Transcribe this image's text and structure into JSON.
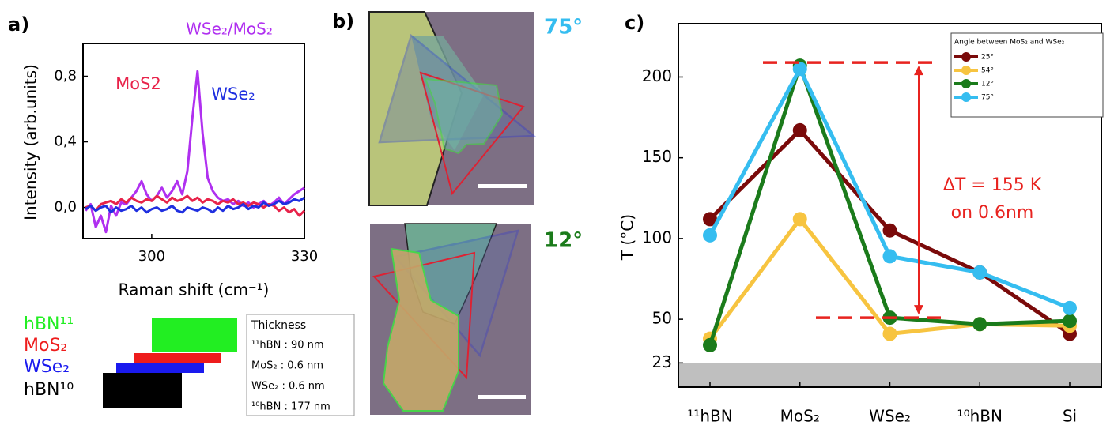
{
  "chart_data": [
    {
      "type": "line",
      "panel": "a)",
      "x": [
        287,
        288,
        289,
        290,
        291,
        292,
        293,
        294,
        295,
        296,
        297,
        298,
        299,
        300,
        301,
        302,
        303,
        304,
        305,
        306,
        307,
        308,
        309,
        310,
        311,
        312,
        313,
        314,
        315,
        316,
        317,
        318,
        319,
        320,
        321,
        322,
        323,
        324,
        325,
        326,
        327,
        328,
        329,
        330
      ],
      "series": [
        {
          "name": "WSe₂/MoS₂",
          "color": "#b030f0",
          "values": [
            -0.02,
            0.02,
            -0.12,
            -0.05,
            -0.15,
            0.01,
            -0.05,
            0.03,
            0.02,
            0.06,
            0.1,
            0.16,
            0.08,
            0.04,
            0.07,
            0.12,
            0.06,
            0.1,
            0.16,
            0.08,
            0.22,
            0.55,
            0.83,
            0.45,
            0.18,
            0.1,
            0.06,
            0.04,
            0.05,
            0.02,
            0.04,
            0.01,
            0.03,
            0.0,
            0.02,
            0.04,
            0.01,
            0.03,
            0.06,
            0.02,
            0.05,
            0.08,
            0.1,
            0.12
          ]
        },
        {
          "name": "MoS2",
          "color": "#e8234a",
          "values": [
            0.0,
            0.01,
            -0.02,
            0.02,
            0.03,
            0.04,
            0.02,
            0.05,
            0.03,
            0.06,
            0.04,
            0.03,
            0.05,
            0.04,
            0.07,
            0.05,
            0.03,
            0.06,
            0.04,
            0.05,
            0.07,
            0.04,
            0.06,
            0.03,
            0.05,
            0.04,
            0.02,
            0.04,
            0.03,
            0.05,
            0.02,
            0.03,
            0.01,
            0.03,
            0.02,
            0.0,
            0.02,
            0.01,
            -0.02,
            0.0,
            -0.03,
            -0.01,
            -0.05,
            -0.02
          ]
        },
        {
          "name": "WSe₂",
          "color": "#1f2fe0",
          "values": [
            -0.01,
            0.01,
            -0.02,
            0.0,
            0.01,
            -0.03,
            0.0,
            -0.02,
            -0.01,
            0.01,
            -0.02,
            0.0,
            -0.03,
            -0.01,
            0.0,
            -0.02,
            -0.01,
            0.01,
            -0.02,
            -0.03,
            0.0,
            -0.01,
            -0.02,
            0.0,
            -0.01,
            -0.03,
            0.0,
            -0.02,
            0.01,
            -0.01,
            0.0,
            0.02,
            -0.01,
            0.01,
            0.0,
            0.03,
            0.01,
            0.02,
            0.04,
            0.02,
            0.03,
            0.05,
            0.04,
            0.06
          ]
        }
      ],
      "xlim": [
        286.5,
        330
      ],
      "xticks": [
        300,
        330
      ],
      "ylim": [
        -0.19,
        1.0
      ],
      "yticks": [
        {
          "value": 0,
          "label": "0,0"
        },
        {
          "value": 0.4,
          "label": "0,4"
        },
        {
          "value": 0.8,
          "label": "0,8"
        }
      ],
      "xlabel": "Raman shift (cm⁻¹)",
      "ylabel": "Intensity (arb.units)"
    },
    {
      "type": "line",
      "panel": "c)",
      "categories": [
        "¹¹hBN",
        "MoS₂",
        "WSe₂",
        "¹⁰hBN",
        "Si"
      ],
      "series": [
        {
          "name": "25°",
          "color": "#7a0a0a",
          "values": [
            112,
            167,
            105,
            79,
            41
          ]
        },
        {
          "name": "54°",
          "color": "#f7c440",
          "values": [
            38,
            112,
            41,
            47,
            46
          ]
        },
        {
          "name": "12°",
          "color": "#1b7b1b",
          "values": [
            34,
            207,
            51,
            47,
            49
          ]
        },
        {
          "name": "75°",
          "color": "#35bdf0",
          "values": [
            102,
            205,
            89,
            79,
            57
          ]
        }
      ],
      "ylim": [
        8,
        233
      ],
      "yticks": [
        23,
        50,
        100,
        150,
        200
      ],
      "ylabel": "T (°C)",
      "legend_title": "Angle between MoS₂ and WSe₂",
      "legend": "upper right",
      "baseline": 23,
      "reference_lines": [
        209,
        51
      ],
      "annotations": [
        "ΔT = 155 K",
        "on 0.6nm"
      ]
    }
  ],
  "stack": {
    "layers": [
      {
        "label": "hBN¹¹",
        "color": "#22ee22"
      },
      {
        "label": "MoS₂",
        "color": "#ee1c1c"
      },
      {
        "label": "WSe₂",
        "color": "#1a1aee"
      },
      {
        "label": "hBN¹⁰",
        "color": "#000000"
      }
    ],
    "thickness": {
      "title": "Thickness",
      "rows": [
        "¹¹hBN : 90 nm",
        "MoS₂ : 0.6 nm",
        "WSe₂ : 0.6 nm",
        "¹⁰hBN : 177 nm"
      ]
    }
  },
  "panel_b": {
    "label": "b)",
    "images": [
      {
        "angle": "75°",
        "color": "#35bdf0"
      },
      {
        "angle": "12°",
        "color": "#1b7b1b"
      }
    ]
  }
}
